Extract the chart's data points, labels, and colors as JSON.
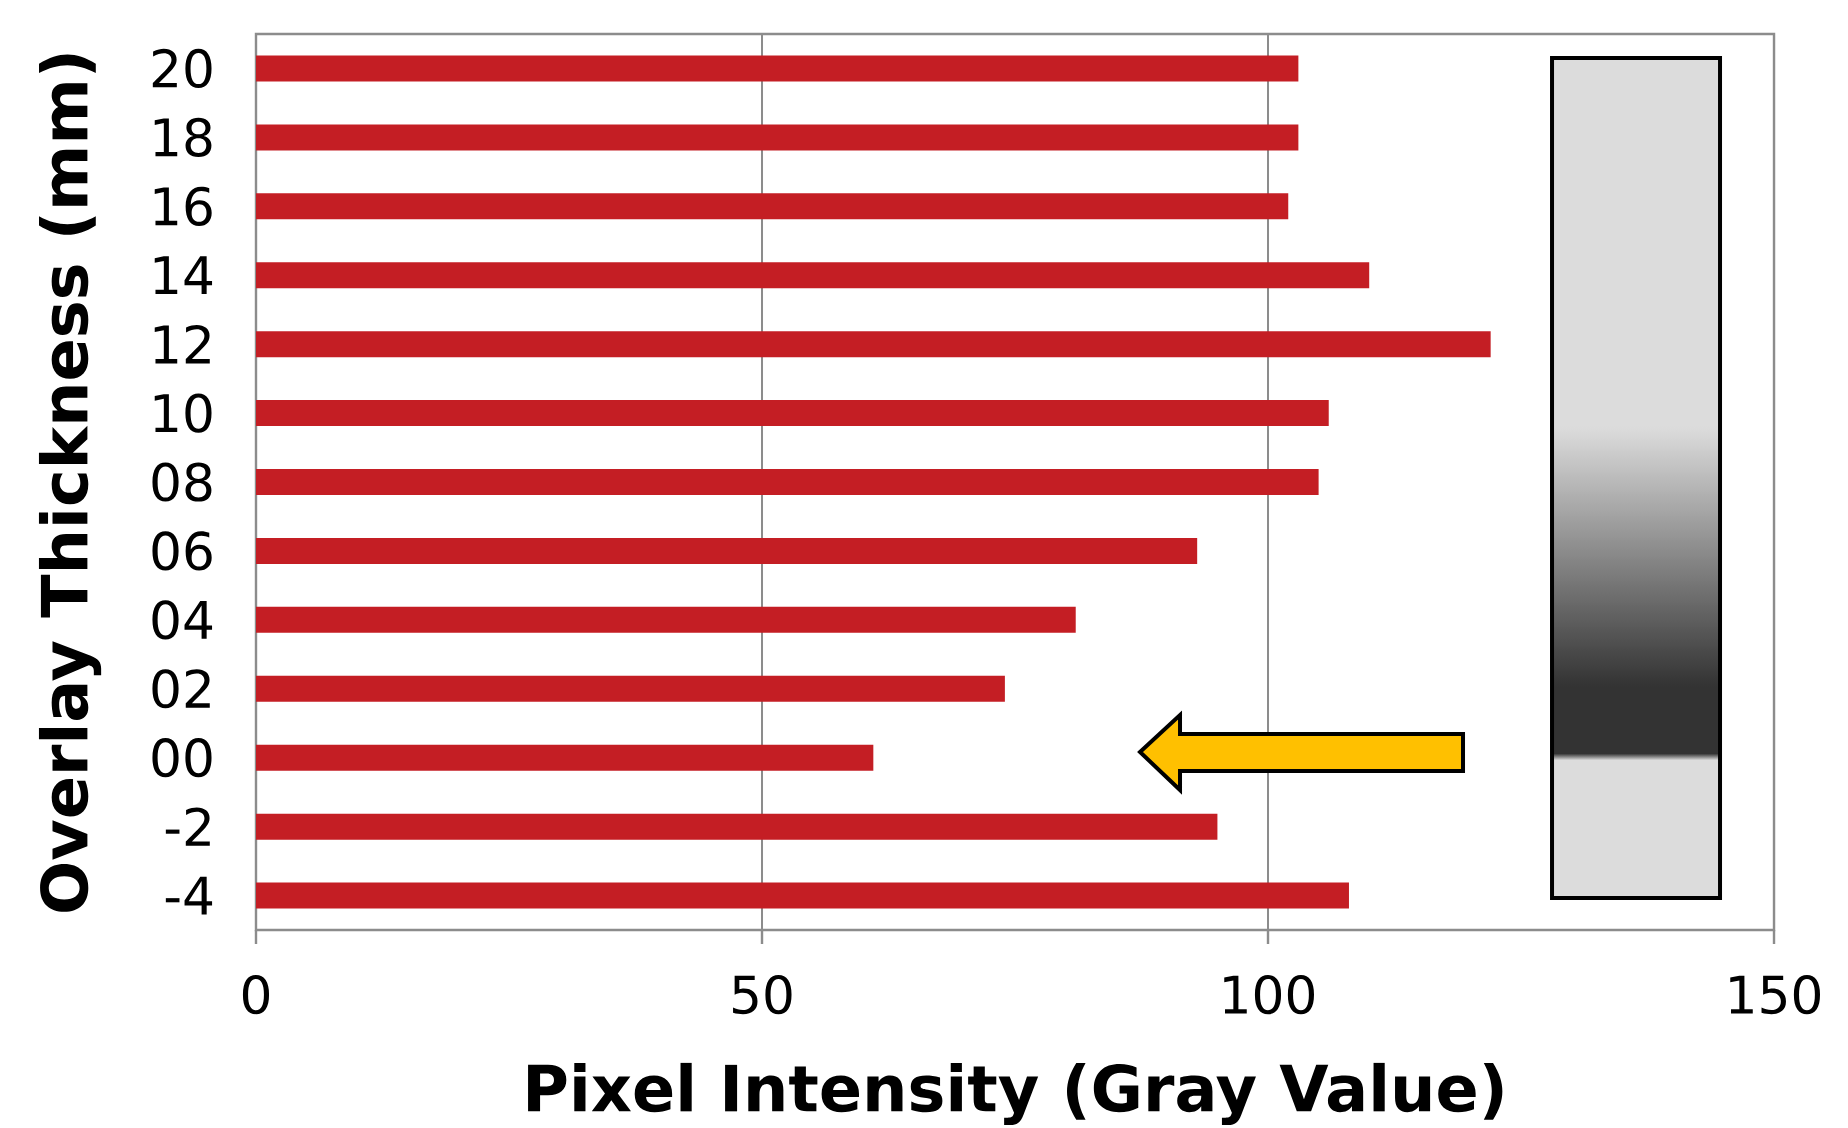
{
  "chart_data": {
    "type": "bar",
    "orientation": "horizontal",
    "xlabel": "Pixel Intensity (Gray Value)",
    "ylabel": "Overlay Thickness (mm)",
    "categories": [
      "20",
      "18",
      "16",
      "14",
      "12",
      "10",
      "08",
      "06",
      "04",
      "02",
      "00",
      "-2",
      "-4"
    ],
    "values": [
      103,
      103,
      102,
      110,
      122,
      106,
      105,
      93,
      81,
      74,
      61,
      95,
      108
    ],
    "color": "#c41e24",
    "xlim": [
      0,
      150
    ],
    "xticks": [
      0,
      50,
      100,
      150
    ],
    "grid": "x"
  }
}
